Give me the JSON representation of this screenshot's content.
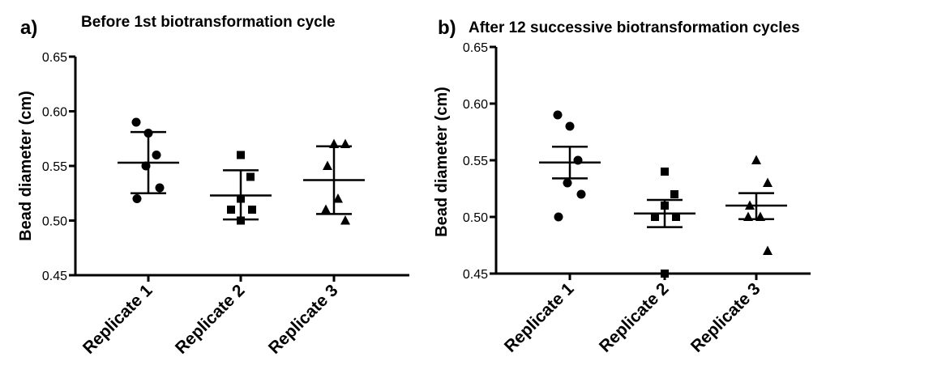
{
  "chart_data": [
    {
      "type": "scatter",
      "panel_label": "a)",
      "title": "Before 1st biotransformation cycle",
      "ylabel": "Bead diameter (cm)",
      "ylim": [
        0.45,
        0.65
      ],
      "yticks": [
        0.45,
        0.5,
        0.55,
        0.6,
        0.65
      ],
      "ytick_labels": [
        "0.45",
        "0.50",
        "0.55",
        "0.60",
        "0.65"
      ],
      "categories": [
        "Replicate 1",
        "Replicate 2",
        "Replicate 3"
      ],
      "series": [
        {
          "marker": "circle",
          "values": [
            0.59,
            0.58,
            0.56,
            0.55,
            0.53,
            0.52
          ],
          "mean": 0.553,
          "err_low": 0.525,
          "err_high": 0.581
        },
        {
          "marker": "square",
          "values": [
            0.56,
            0.54,
            0.52,
            0.51,
            0.51,
            0.5
          ],
          "mean": 0.523,
          "err_low": 0.501,
          "err_high": 0.546
        },
        {
          "marker": "triangle",
          "values": [
            0.57,
            0.57,
            0.55,
            0.52,
            0.51,
            0.5
          ],
          "mean": 0.537,
          "err_low": 0.506,
          "err_high": 0.568
        }
      ],
      "error_bars": "mean ± SD",
      "grid": false
    },
    {
      "type": "scatter",
      "panel_label": "b)",
      "title": "After 12 successive biotransformation cycles",
      "ylabel": "Bead diameter (cm)",
      "ylim": [
        0.45,
        0.65
      ],
      "yticks": [
        0.45,
        0.5,
        0.55,
        0.6,
        0.65
      ],
      "ytick_labels": [
        "0.45",
        "0.50",
        "0.55",
        "0.60",
        "0.65"
      ],
      "categories": [
        "Replicate 1",
        "Replicate 2",
        "Replicate 3"
      ],
      "series": [
        {
          "marker": "circle",
          "values": [
            0.59,
            0.58,
            0.55,
            0.53,
            0.52,
            0.5
          ],
          "mean": 0.548,
          "err_low": 0.534,
          "err_high": 0.562
        },
        {
          "marker": "square",
          "values": [
            0.54,
            0.52,
            0.51,
            0.5,
            0.5,
            0.45
          ],
          "mean": 0.503,
          "err_low": 0.491,
          "err_high": 0.515
        },
        {
          "marker": "triangle",
          "values": [
            0.55,
            0.53,
            0.51,
            0.5,
            0.5,
            0.47
          ],
          "mean": 0.51,
          "err_low": 0.498,
          "err_high": 0.521
        }
      ],
      "error_bars": "mean ± SEM",
      "grid": false
    }
  ]
}
